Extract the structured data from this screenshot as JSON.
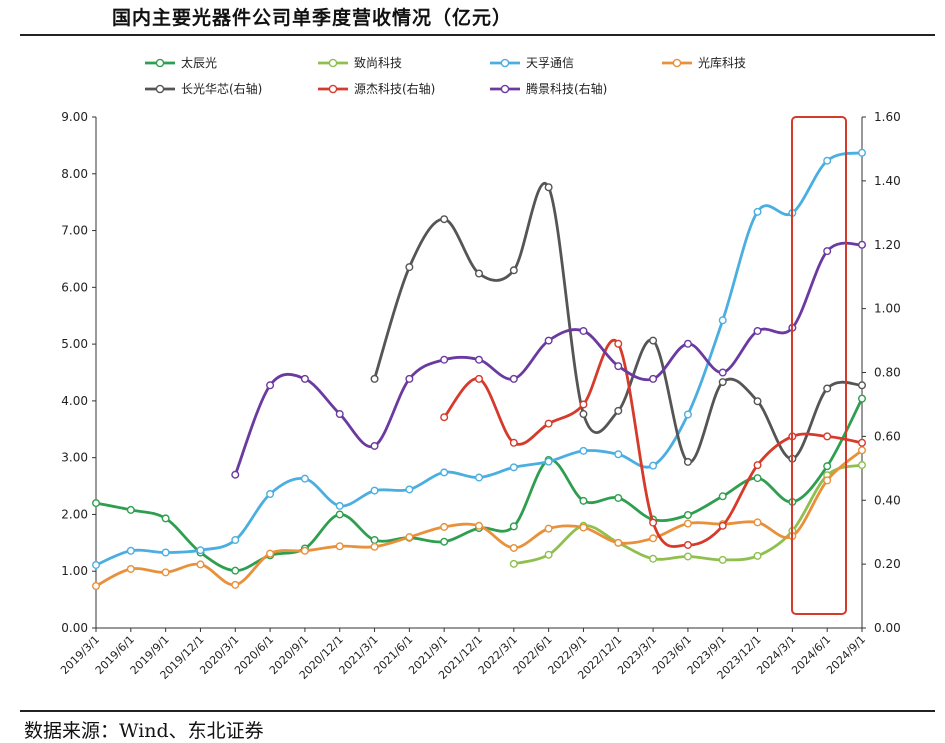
{
  "title": "国内主要光器件公司单季度营收情况（亿元）",
  "source": "数据来源：Wind、东北证券",
  "chart_data": {
    "type": "line",
    "x": [
      "2019/3/1",
      "2019/6/1",
      "2019/9/1",
      "2019/12/1",
      "2020/3/1",
      "2020/6/1",
      "2020/9/1",
      "2020/12/1",
      "2021/3/1",
      "2021/6/1",
      "2021/9/1",
      "2021/12/1",
      "2022/3/1",
      "2022/6/1",
      "2022/9/1",
      "2022/12/1",
      "2023/3/1",
      "2023/6/1",
      "2023/9/1",
      "2023/12/1",
      "2024/3/1",
      "2024/6/1",
      "2024/9/1"
    ],
    "y_left": {
      "min": 0,
      "max": 9,
      "step": 1,
      "decimals": 2
    },
    "y_right": {
      "min": 0,
      "max": 1.6,
      "step": 0.2,
      "decimals": 2
    },
    "series": [
      {
        "name": "太辰光",
        "color": "#2e9e4f",
        "axis": "left",
        "values": [
          2.2,
          2.08,
          1.93,
          1.33,
          1.01,
          1.28,
          1.4,
          2.0,
          1.55,
          1.59,
          1.52,
          1.76,
          1.79,
          2.96,
          2.24,
          2.29,
          1.91,
          1.99,
          2.32,
          2.64,
          2.22,
          2.85,
          4.04
        ]
      },
      {
        "name": "致尚科技",
        "color": "#8fbf4d",
        "axis": "left",
        "values": [
          null,
          null,
          null,
          null,
          null,
          null,
          null,
          null,
          null,
          null,
          null,
          null,
          1.13,
          1.29,
          1.8,
          1.5,
          1.22,
          1.26,
          1.2,
          1.27,
          1.71,
          2.69,
          2.87
        ]
      },
      {
        "name": "天孚通信",
        "color": "#4baee0",
        "axis": "left",
        "values": [
          1.11,
          1.36,
          1.33,
          1.37,
          1.55,
          2.36,
          2.63,
          2.15,
          2.42,
          2.44,
          2.74,
          2.65,
          2.83,
          2.93,
          3.12,
          3.06,
          2.86,
          3.76,
          5.42,
          7.33,
          7.31,
          8.23,
          8.37
        ]
      },
      {
        "name": "光库科技",
        "color": "#e8903a",
        "axis": "left",
        "values": [
          0.74,
          1.04,
          0.98,
          1.12,
          0.76,
          1.31,
          1.36,
          1.44,
          1.43,
          1.6,
          1.78,
          1.8,
          1.41,
          1.75,
          1.77,
          1.5,
          1.58,
          1.84,
          1.83,
          1.86,
          1.62,
          2.6,
          3.13
        ]
      },
      {
        "name": "长光华芯(右轴)",
        "color": "#555555",
        "axis": "right",
        "values": [
          null,
          null,
          null,
          null,
          null,
          null,
          null,
          null,
          0.78,
          1.13,
          1.28,
          1.11,
          1.12,
          1.38,
          0.67,
          0.68,
          0.9,
          0.52,
          0.77,
          0.71,
          0.53,
          0.75,
          0.76
        ]
      },
      {
        "name": "源杰科技(右轴)",
        "color": "#d63a2b",
        "axis": "right",
        "values": [
          null,
          null,
          null,
          null,
          null,
          null,
          null,
          null,
          null,
          null,
          0.66,
          0.78,
          0.58,
          0.64,
          0.7,
          0.89,
          0.33,
          0.26,
          0.32,
          0.51,
          0.6,
          0.6,
          0.58
        ]
      },
      {
        "name": "腾景科技(右轴)",
        "color": "#6a3aa0",
        "axis": "right",
        "values": [
          null,
          null,
          null,
          null,
          0.48,
          0.76,
          0.78,
          0.67,
          0.57,
          0.78,
          0.84,
          0.84,
          0.78,
          0.9,
          0.93,
          0.82,
          0.78,
          0.89,
          0.8,
          0.93,
          0.94,
          1.18,
          1.2
        ]
      }
    ]
  }
}
